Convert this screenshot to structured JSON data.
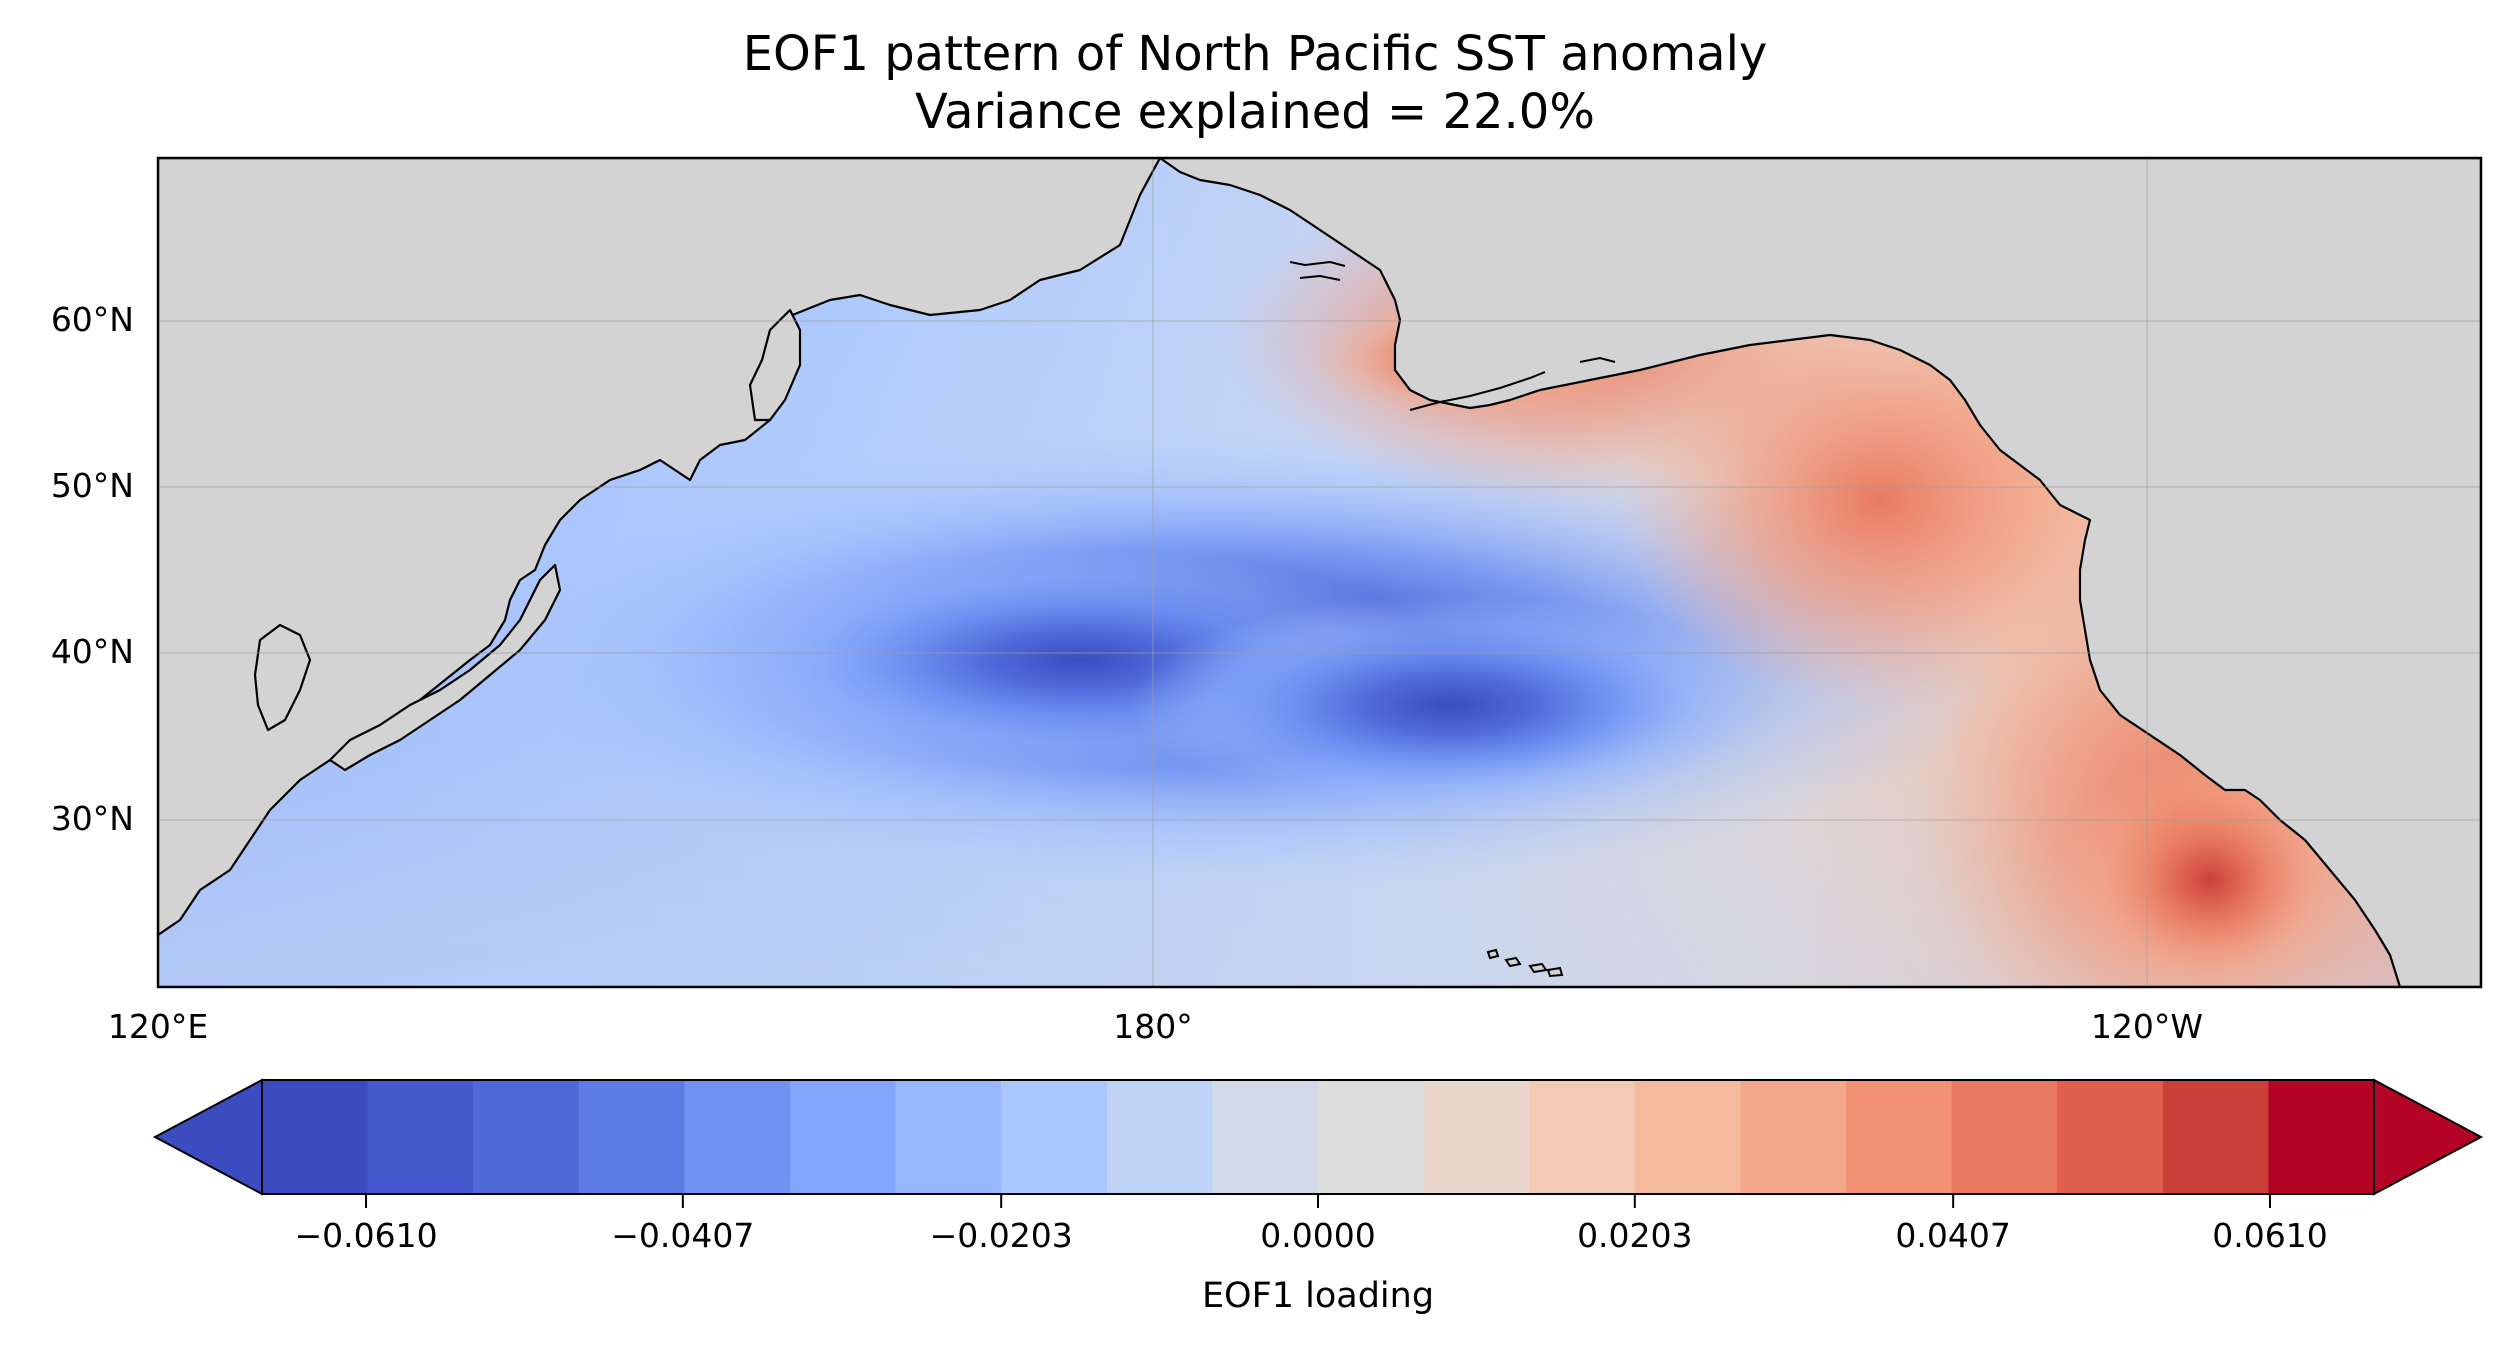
{
  "title": {
    "line1": "EOF1 pattern of North Pacific SST anomaly",
    "line2": "Variance explained = 22.0%"
  },
  "map": {
    "projection": "PlateCarree",
    "lon_range_deg_east": [
      120,
      253
    ],
    "lat_range_deg_north": [
      20,
      70
    ],
    "land_color": "#d3d3d3",
    "coastline_color": "#000000",
    "gridlines": true,
    "xticks": [
      "120°E",
      "180°",
      "120°W"
    ],
    "yticks": [
      "60°N",
      "50°N",
      "40°N",
      "30°N"
    ]
  },
  "chart_data": {
    "type": "heatmap",
    "title": "EOF1 pattern of North Pacific SST anomaly",
    "subtitle": "Variance explained = 22.0%",
    "colormap": "coolwarm",
    "field_summary": {
      "negative_centers": [
        {
          "lon": 175,
          "lat": 40,
          "value": -0.066
        },
        {
          "lon": 190,
          "lat": 36,
          "value": -0.066
        }
      ],
      "positive_centers": [
        {
          "lon": 197,
          "lat": 57,
          "value": 0.062
        },
        {
          "lon": 232,
          "lat": 52,
          "value": 0.047
        },
        {
          "lon": 245,
          "lat": 27,
          "value": 0.055
        }
      ]
    },
    "colorbar": {
      "label": "EOF1 loading",
      "extend": "both",
      "ticks": [
        "−0.0610",
        "−0.0407",
        "−0.0203",
        "0.0000",
        "0.0203",
        "0.0407",
        "0.0610"
      ],
      "tick_values": [
        -0.061,
        -0.0407,
        -0.0203,
        0.0,
        0.0203,
        0.0407,
        0.061
      ],
      "level_colors": [
        "#3b4cc0",
        "#445acc",
        "#4f69d9",
        "#5d7ce6",
        "#6f92f3",
        "#82a6fb",
        "#96b7ff",
        "#aac7fd",
        "#bfd3f6",
        "#d1dae9",
        "#dddcdc",
        "#e9d5cb",
        "#f2cab5",
        "#f6bb9f",
        "#f5a889",
        "#f29274",
        "#e97a5f",
        "#de604d",
        "#cb4039",
        "#b40426"
      ],
      "under_color": "#3b4cc0",
      "over_color": "#b40426"
    }
  }
}
